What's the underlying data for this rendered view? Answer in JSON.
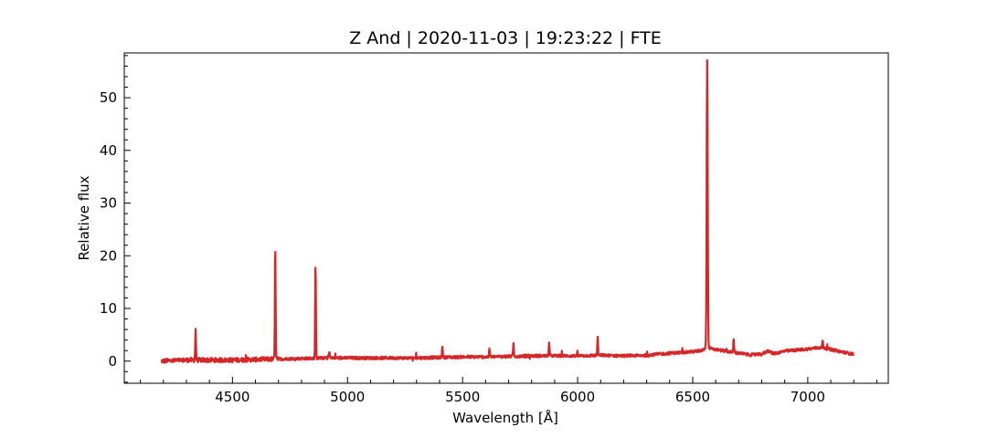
{
  "chart_data": {
    "type": "line",
    "title": "Z And | 2020-11-03 | 19:23:22 | FTE",
    "xlabel": "Wavelength [Å]",
    "ylabel": "Relative flux",
    "xlim": [
      4030,
      7350
    ],
    "ylim": [
      -4.2,
      58.5
    ],
    "xticks": [
      4500,
      5000,
      5500,
      6000,
      6500,
      7000
    ],
    "yticks": [
      0,
      10,
      20,
      30,
      40,
      50
    ],
    "xtick_labels": [
      "4500",
      "5000",
      "5500",
      "6000",
      "6500",
      "7000"
    ],
    "ytick_labels": [
      "0",
      "10",
      "20",
      "30",
      "40",
      "50"
    ],
    "grid": false,
    "legend": "none",
    "line_color": "#d62728",
    "series": [
      {
        "continuum_x": [
          4190,
          4300,
          4400,
          4500,
          4600,
          4700,
          4800,
          4900,
          5000,
          5100,
          5200,
          5300,
          5400,
          5500,
          5600,
          5700,
          5800,
          5900,
          6000,
          6100,
          6200,
          6300,
          6400,
          6500,
          6550,
          6600,
          6700,
          6750,
          6800,
          6830,
          6850,
          6900,
          7000,
          7060,
          7100,
          7200
        ],
        "continuum_y": [
          0.0,
          0.2,
          0.2,
          0.2,
          0.3,
          0.4,
          0.5,
          0.6,
          0.6,
          0.6,
          0.6,
          0.6,
          0.7,
          0.8,
          0.8,
          0.9,
          1.0,
          1.0,
          1.0,
          1.1,
          1.0,
          1.1,
          1.5,
          1.8,
          2.0,
          2.2,
          1.5,
          1.2,
          1.3,
          2.0,
          1.4,
          1.9,
          2.3,
          2.6,
          2.2,
          1.3
        ],
        "lines": [
          {
            "x": 4340,
            "peak": 6.2
          },
          {
            "x": 4686,
            "peak": 22.0
          },
          {
            "x": 4861,
            "peak": 18.3
          },
          {
            "x": 4921,
            "peak": 1.8
          },
          {
            "x": 5412,
            "peak": 2.9
          },
          {
            "x": 5617,
            "peak": 2.4
          },
          {
            "x": 5721,
            "peak": 3.4
          },
          {
            "x": 5876,
            "peak": 3.7
          },
          {
            "x": 6087,
            "peak": 4.7
          },
          {
            "x": 6563,
            "peak": 56.0
          },
          {
            "x": 6678,
            "peak": 4.3
          },
          {
            "x": 7065,
            "peak": 3.9
          }
        ]
      }
    ]
  }
}
